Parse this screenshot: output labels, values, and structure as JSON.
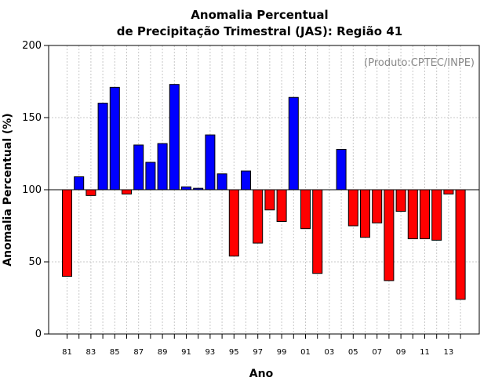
{
  "chart_data": {
    "type": "bar",
    "title": [
      "Anomalia Percentual",
      "de Precipitação Trimestral (JAS): Região 41"
    ],
    "credit": "(Produto:CPTEC/INPE)",
    "xlabel": "Ano",
    "ylabel": "Anomalia Percentual (%)",
    "ylim": [
      0,
      200
    ],
    "yticks": [
      0,
      50,
      100,
      150,
      200
    ],
    "baseline": 100,
    "grid": true,
    "categories": [
      "81",
      "82",
      "83",
      "84",
      "85",
      "86",
      "87",
      "88",
      "89",
      "90",
      "91",
      "92",
      "93",
      "94",
      "95",
      "96",
      "97",
      "98",
      "99",
      "00",
      "01",
      "02",
      "03",
      "04",
      "05",
      "06",
      "07",
      "08",
      "09",
      "10",
      "11",
      "12",
      "13",
      "14"
    ],
    "xtick_labels": [
      "81",
      "83",
      "85",
      "87",
      "89",
      "91",
      "93",
      "95",
      "97",
      "99",
      "01",
      "03",
      "05",
      "07",
      "09",
      "11",
      "13"
    ],
    "values": [
      40,
      109,
      96,
      160,
      171,
      97,
      131,
      119,
      132,
      173,
      102,
      101,
      138,
      111,
      54,
      113,
      63,
      86,
      78,
      164,
      73,
      42,
      100,
      128,
      75,
      67,
      77,
      37,
      85,
      66,
      66,
      65,
      97,
      24
    ],
    "colors": {
      "above": "#0000ff",
      "below": "#ff0000",
      "grid": "#c8c8c8"
    }
  }
}
